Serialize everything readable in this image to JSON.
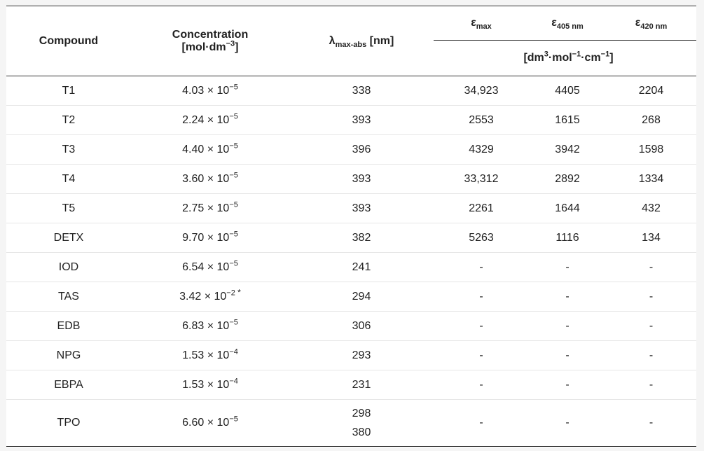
{
  "headers": {
    "compound": "Compound",
    "concentration_line1": "Concentration",
    "concentration_line2_prefix": "[mol·dm",
    "concentration_line2_sup": "−3",
    "concentration_line2_suffix": "]",
    "lambda_symbol": "λ",
    "lambda_sub": "max-abs",
    "lambda_unit": " [nm]",
    "eps_symbol": "ε",
    "eps_max_sub": "max",
    "eps_405_sub": "405 nm",
    "eps_420_sub": "420 nm",
    "units_p1": "[dm",
    "units_s1": "3",
    "units_p2": "·mol",
    "units_s2": "−1",
    "units_p3": "·cm",
    "units_s3": "−1",
    "units_p4": "]"
  },
  "rows": [
    {
      "compound": "T1",
      "conc_base": "4.03 × 10",
      "conc_exp": "−5",
      "conc_note": "",
      "lambda": [
        "338"
      ],
      "eps_max": "34,923",
      "eps_405": "4405",
      "eps_420": "2204"
    },
    {
      "compound": "T2",
      "conc_base": "2.24 × 10",
      "conc_exp": "−5",
      "conc_note": "",
      "lambda": [
        "393"
      ],
      "eps_max": "2553",
      "eps_405": "1615",
      "eps_420": "268"
    },
    {
      "compound": "T3",
      "conc_base": "4.40 × 10",
      "conc_exp": "−5",
      "conc_note": "",
      "lambda": [
        "396"
      ],
      "eps_max": "4329",
      "eps_405": "3942",
      "eps_420": "1598"
    },
    {
      "compound": "T4",
      "conc_base": "3.60 × 10",
      "conc_exp": "−5",
      "conc_note": "",
      "lambda": [
        "393"
      ],
      "eps_max": "33,312",
      "eps_405": "2892",
      "eps_420": "1334"
    },
    {
      "compound": "T5",
      "conc_base": "2.75 × 10",
      "conc_exp": "−5",
      "conc_note": "",
      "lambda": [
        "393"
      ],
      "eps_max": "2261",
      "eps_405": "1644",
      "eps_420": "432"
    },
    {
      "compound": "DETX",
      "conc_base": "9.70 × 10",
      "conc_exp": "−5",
      "conc_note": "",
      "lambda": [
        "382"
      ],
      "eps_max": "5263",
      "eps_405": "1116",
      "eps_420": "134"
    },
    {
      "compound": "IOD",
      "conc_base": "6.54 × 10",
      "conc_exp": "−5",
      "conc_note": "",
      "lambda": [
        "241"
      ],
      "eps_max": "-",
      "eps_405": "-",
      "eps_420": "-"
    },
    {
      "compound": "TAS",
      "conc_base": "3.42 × 10",
      "conc_exp": "−2",
      "conc_note": " *",
      "lambda": [
        "294"
      ],
      "eps_max": "-",
      "eps_405": "-",
      "eps_420": "-"
    },
    {
      "compound": "EDB",
      "conc_base": "6.83 × 10",
      "conc_exp": "−5",
      "conc_note": "",
      "lambda": [
        "306"
      ],
      "eps_max": "-",
      "eps_405": "-",
      "eps_420": "-"
    },
    {
      "compound": "NPG",
      "conc_base": "1.53 × 10",
      "conc_exp": "−4",
      "conc_note": "",
      "lambda": [
        "293"
      ],
      "eps_max": "-",
      "eps_405": "-",
      "eps_420": "-"
    },
    {
      "compound": "EBPA",
      "conc_base": "1.53 × 10",
      "conc_exp": "−4",
      "conc_note": "",
      "lambda": [
        "231"
      ],
      "eps_max": "-",
      "eps_405": "-",
      "eps_420": "-"
    },
    {
      "compound": "TPO",
      "conc_base": "6.60 × 10",
      "conc_exp": "−5",
      "conc_note": "",
      "lambda": [
        "298",
        "380"
      ],
      "eps_max": "-",
      "eps_405": "-",
      "eps_420": "-"
    }
  ]
}
